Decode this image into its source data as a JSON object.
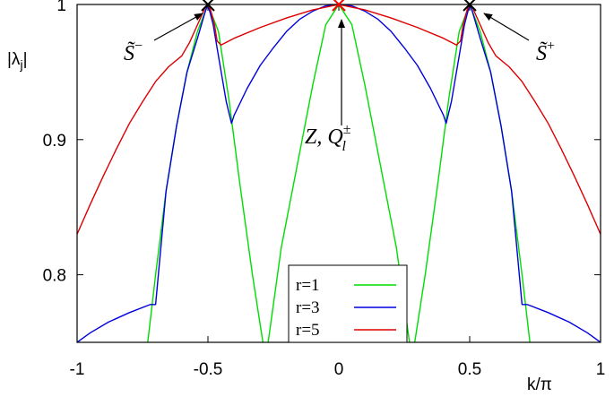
{
  "chart_data": {
    "type": "line",
    "xlabel": "k/π",
    "ylabel": "|λ_j|",
    "xlim": [
      -1,
      1
    ],
    "ylim": [
      0.75,
      1.0
    ],
    "xticks": [
      "-1",
      "-0.5",
      "0",
      "0.5",
      "1"
    ],
    "xtick_values": [
      -1,
      -0.5,
      0,
      0.5,
      1
    ],
    "yticks": [
      "0.8",
      "0.9",
      "1"
    ],
    "ytick_values": [
      0.8,
      0.9,
      1.0
    ],
    "legend_position": "bottom-center",
    "series": [
      {
        "name": "r=1",
        "color": "#00dd00",
        "segments": [
          [
            [
              -0.73,
              0.75
            ],
            [
              -0.7,
              0.8
            ],
            [
              -0.66,
              0.862
            ],
            [
              -0.62,
              0.91
            ],
            [
              -0.58,
              0.95
            ],
            [
              -0.54,
              0.98
            ],
            [
              -0.51,
              0.995
            ],
            [
              -0.5,
              1.0
            ],
            [
              -0.49,
              0.995
            ],
            [
              -0.46,
              0.98
            ],
            [
              -0.42,
              0.93
            ],
            [
              -0.38,
              0.87
            ],
            [
              -0.33,
              0.8
            ],
            [
              -0.29,
              0.75
            ]
          ],
          [
            [
              -0.27,
              0.75
            ],
            [
              -0.22,
              0.82
            ],
            [
              -0.16,
              0.88
            ],
            [
              -0.1,
              0.94
            ],
            [
              -0.05,
              0.985
            ],
            [
              0.0,
              1.0
            ],
            [
              0.05,
              0.985
            ],
            [
              0.1,
              0.94
            ],
            [
              0.16,
              0.88
            ],
            [
              0.22,
              0.82
            ],
            [
              0.27,
              0.75
            ]
          ],
          [
            [
              0.29,
              0.75
            ],
            [
              0.33,
              0.8
            ],
            [
              0.38,
              0.87
            ],
            [
              0.42,
              0.93
            ],
            [
              0.46,
              0.98
            ],
            [
              0.49,
              0.995
            ],
            [
              0.5,
              1.0
            ],
            [
              0.51,
              0.995
            ],
            [
              0.54,
              0.98
            ],
            [
              0.58,
              0.95
            ],
            [
              0.62,
              0.91
            ],
            [
              0.66,
              0.862
            ],
            [
              0.7,
              0.8
            ],
            [
              0.73,
              0.75
            ]
          ]
        ]
      },
      {
        "name": "r=3",
        "color": "#0000dd",
        "segments": [
          [
            [
              -1.0,
              0.75
            ],
            [
              -0.95,
              0.757
            ],
            [
              -0.88,
              0.765
            ],
            [
              -0.8,
              0.772
            ],
            [
              -0.72,
              0.778
            ],
            [
              -0.7,
              0.778
            ],
            [
              -0.66,
              0.862
            ],
            [
              -0.62,
              0.91
            ],
            [
              -0.58,
              0.95
            ],
            [
              -0.54,
              0.975
            ],
            [
              -0.51,
              0.995
            ],
            [
              -0.5,
              1.0
            ],
            [
              -0.48,
              0.985
            ],
            [
              -0.46,
              0.962
            ],
            [
              -0.445,
              0.945
            ],
            [
              -0.43,
              0.928
            ],
            [
              -0.41,
              0.912
            ],
            [
              -0.4,
              0.918
            ],
            [
              -0.35,
              0.938
            ],
            [
              -0.3,
              0.955
            ],
            [
              -0.25,
              0.968
            ],
            [
              -0.2,
              0.98
            ],
            [
              -0.15,
              0.989
            ],
            [
              -0.1,
              0.995
            ],
            [
              -0.05,
              0.999
            ],
            [
              0.0,
              1.0
            ],
            [
              0.05,
              0.999
            ],
            [
              0.1,
              0.995
            ],
            [
              0.15,
              0.989
            ],
            [
              0.2,
              0.98
            ],
            [
              0.25,
              0.968
            ],
            [
              0.3,
              0.955
            ],
            [
              0.35,
              0.938
            ],
            [
              0.4,
              0.918
            ],
            [
              0.41,
              0.912
            ],
            [
              0.43,
              0.928
            ],
            [
              0.445,
              0.945
            ],
            [
              0.46,
              0.962
            ],
            [
              0.48,
              0.985
            ],
            [
              0.5,
              1.0
            ],
            [
              0.51,
              0.995
            ],
            [
              0.54,
              0.975
            ],
            [
              0.58,
              0.95
            ],
            [
              0.62,
              0.91
            ],
            [
              0.66,
              0.862
            ],
            [
              0.7,
              0.778
            ],
            [
              0.72,
              0.778
            ],
            [
              0.8,
              0.772
            ],
            [
              0.88,
              0.765
            ],
            [
              0.95,
              0.757
            ],
            [
              1.0,
              0.75
            ]
          ]
        ]
      },
      {
        "name": "r=5",
        "color": "#dd0000",
        "segments": [
          [
            [
              -1.0,
              0.83
            ],
            [
              -0.95,
              0.852
            ],
            [
              -0.9,
              0.873
            ],
            [
              -0.85,
              0.893
            ],
            [
              -0.8,
              0.912
            ],
            [
              -0.75,
              0.928
            ],
            [
              -0.7,
              0.943
            ],
            [
              -0.65,
              0.954
            ],
            [
              -0.6,
              0.962
            ],
            [
              -0.57,
              0.972
            ],
            [
              -0.54,
              0.985
            ],
            [
              -0.51,
              0.998
            ],
            [
              -0.5,
              1.0
            ],
            [
              -0.49,
              0.996
            ],
            [
              -0.475,
              0.985
            ],
            [
              -0.465,
              0.973
            ],
            [
              -0.45,
              0.97
            ],
            [
              -0.4,
              0.975
            ],
            [
              -0.3,
              0.983
            ],
            [
              -0.2,
              0.99
            ],
            [
              -0.1,
              0.996
            ],
            [
              0.0,
              1.0
            ],
            [
              0.1,
              0.996
            ],
            [
              0.2,
              0.99
            ],
            [
              0.3,
              0.983
            ],
            [
              0.4,
              0.975
            ],
            [
              0.45,
              0.97
            ],
            [
              0.465,
              0.973
            ],
            [
              0.475,
              0.985
            ],
            [
              0.49,
              0.996
            ],
            [
              0.5,
              1.0
            ],
            [
              0.51,
              0.998
            ],
            [
              0.54,
              0.985
            ],
            [
              0.57,
              0.972
            ],
            [
              0.6,
              0.962
            ],
            [
              0.65,
              0.954
            ],
            [
              0.7,
              0.943
            ],
            [
              0.75,
              0.928
            ],
            [
              0.8,
              0.912
            ],
            [
              0.85,
              0.893
            ],
            [
              0.9,
              0.873
            ],
            [
              0.95,
              0.852
            ],
            [
              1.0,
              0.83
            ]
          ]
        ]
      }
    ],
    "annotations": [
      {
        "name": "s-minus",
        "text": "S̃",
        "sup": "−",
        "point": [
          -0.5,
          1.0
        ],
        "color": "#000000"
      },
      {
        "name": "z-q",
        "text": "Z, Q",
        "sup": "±",
        "sub": "l",
        "point": [
          0.0,
          1.0
        ],
        "color": "#ff0000"
      },
      {
        "name": "s-plus",
        "text": "S̃",
        "sup": "+",
        "point": [
          0.5,
          1.0
        ],
        "color": "#000000"
      }
    ]
  }
}
